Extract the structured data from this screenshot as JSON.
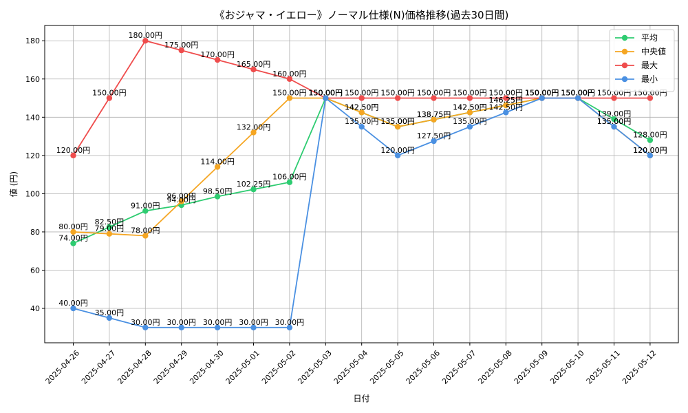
{
  "chart_data": {
    "type": "line",
    "title": "《おジャマ・イエロー》ノーマル仕様(N)価格推移(過去30日間)",
    "xlabel": "日付",
    "ylabel": "値 (円)",
    "value_suffix": "円",
    "ylim": [
      22,
      188
    ],
    "yticks": [
      40,
      60,
      80,
      100,
      120,
      140,
      160,
      180
    ],
    "grid": true,
    "legend_position": "top-right",
    "categories": [
      "2025-04-26",
      "2025-04-27",
      "2025-04-28",
      "2025-04-29",
      "2025-04-30",
      "2025-05-01",
      "2025-05-02",
      "2025-05-03",
      "2025-05-04",
      "2025-05-05",
      "2025-05-06",
      "2025-05-07",
      "2025-05-08",
      "2025-05-09",
      "2025-05-10",
      "2025-05-11",
      "2025-05-12"
    ],
    "series": [
      {
        "name": "平均",
        "color": "#2ecc71",
        "values": [
          74.0,
          82.5,
          91.0,
          94.0,
          98.5,
          102.25,
          106.0,
          150.0,
          142.5,
          135.0,
          138.75,
          142.5,
          146.25,
          150.0,
          150.0,
          139.0,
          128.0
        ]
      },
      {
        "name": "中央値",
        "color": "#f5a623",
        "values": [
          80.0,
          79.0,
          78.0,
          96.0,
          114.0,
          132.0,
          150.0,
          150.0,
          142.5,
          135.0,
          138.75,
          142.5,
          146.25,
          150.0,
          150.0,
          135.0,
          120.0
        ]
      },
      {
        "name": "最大",
        "color": "#ef4d4d",
        "values": [
          120.0,
          150.0,
          180.0,
          175.0,
          170.0,
          165.0,
          160.0,
          150.0,
          150.0,
          150.0,
          150.0,
          150.0,
          150.0,
          150.0,
          150.0,
          150.0,
          150.0
        ]
      },
      {
        "name": "最小",
        "color": "#4a90e2",
        "values": [
          40.0,
          35.0,
          30.0,
          30.0,
          30.0,
          30.0,
          30.0,
          150.0,
          135.0,
          120.0,
          127.5,
          135.0,
          142.5,
          150.0,
          150.0,
          135.0,
          120.0
        ]
      }
    ]
  }
}
